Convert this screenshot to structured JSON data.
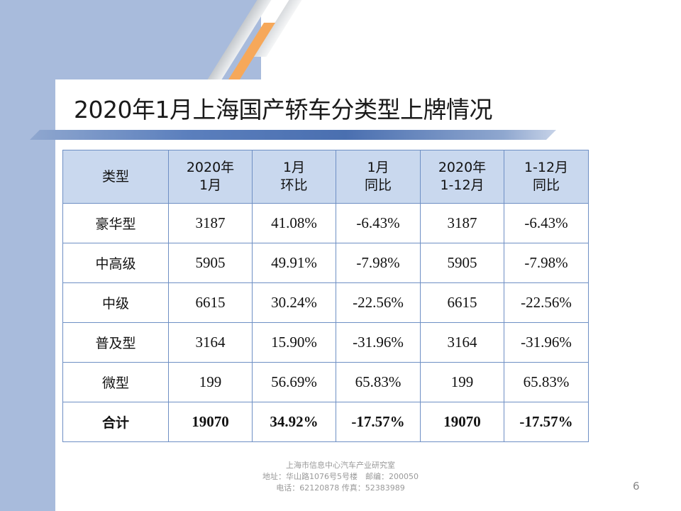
{
  "slide": {
    "title": "2020年1月上海国产轿车分类型上牌情况",
    "page_number": "6"
  },
  "table": {
    "headers": [
      [
        "类型"
      ],
      [
        "2020年",
        "1月"
      ],
      [
        "1月",
        "环比"
      ],
      [
        "1月",
        "同比"
      ],
      [
        "2020年",
        "1-12月"
      ],
      [
        "1-12月",
        "同比"
      ]
    ],
    "rows": [
      [
        "豪华型",
        "3187",
        "41.08%",
        "-6.43%",
        "3187",
        "-6.43%"
      ],
      [
        "中高级",
        "5905",
        "49.91%",
        "-7.98%",
        "5905",
        "-7.98%"
      ],
      [
        "中级",
        "6615",
        "30.24%",
        "-22.56%",
        "6615",
        "-22.56%"
      ],
      [
        "普及型",
        "3164",
        "15.90%",
        "-31.96%",
        "3164",
        "-31.96%"
      ],
      [
        "微型",
        "199",
        "56.69%",
        "65.83%",
        "199",
        "65.83%"
      ],
      [
        "合计",
        "19070",
        "34.92%",
        "-17.57%",
        "19070",
        "-17.57%"
      ]
    ]
  },
  "footer": {
    "line1": "上海市信息中心汽车产业研究室",
    "line2": "地址：华山路1076号5号楼　邮编：200050",
    "line3": "电话：62120878 传真：52383989"
  },
  "colors": {
    "header_fill": "#c9d8ee",
    "table_border": "#6e8fc4",
    "accent_blue": "#4a6fb0",
    "accent_orange": "#f6a85a",
    "background_blue": "#a8bbdc"
  }
}
